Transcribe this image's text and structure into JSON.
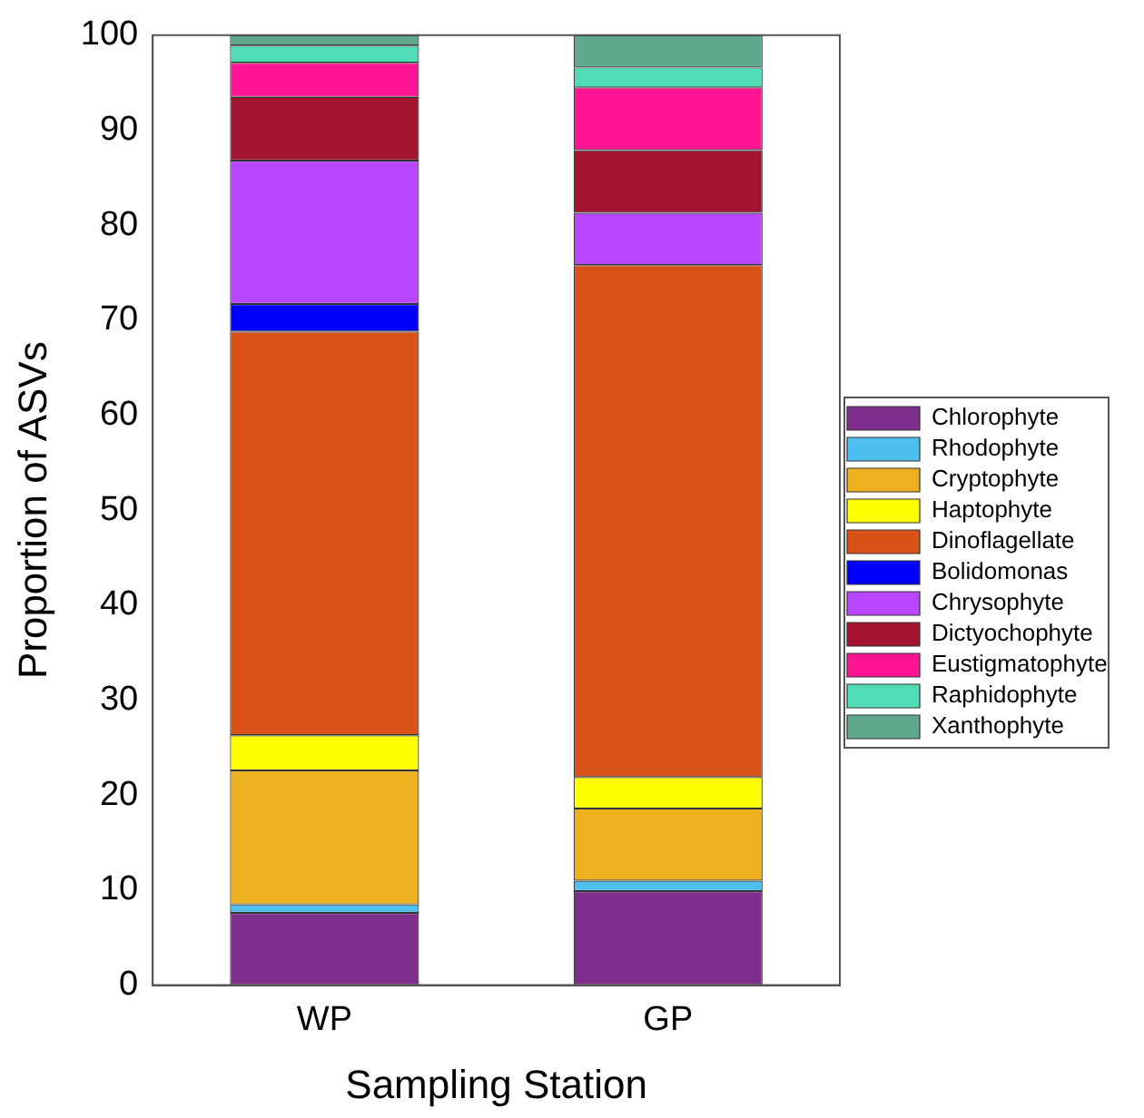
{
  "chart_data": {
    "type": "bar",
    "stacked": true,
    "xlabel": "Sampling Station",
    "ylabel": "Proportion of ASVs",
    "categories": [
      "WP",
      "GP"
    ],
    "ylim": [
      0,
      100
    ],
    "yticks": [
      0,
      10,
      20,
      30,
      40,
      50,
      60,
      70,
      80,
      90,
      100
    ],
    "grid": false,
    "legend": "right",
    "series": [
      {
        "name": "Chlorophyte",
        "color": "#7e2f8e",
        "values": [
          7.6,
          9.9
        ]
      },
      {
        "name": "Rhodophyte",
        "color": "#4dbeee",
        "values": [
          0.9,
          1.1
        ]
      },
      {
        "name": "Cryptophyte",
        "color": "#edb120",
        "values": [
          14.1,
          7.6
        ]
      },
      {
        "name": "Haptophyte",
        "color": "#ffff00",
        "values": [
          3.7,
          3.3
        ]
      },
      {
        "name": "Dinoflagellate",
        "color": "#d95319",
        "values": [
          42.5,
          53.9
        ]
      },
      {
        "name": "Bolidomonas",
        "color": "#0000ff",
        "values": [
          2.9,
          0
        ]
      },
      {
        "name": "Chrysophyte",
        "color": "#b946ff",
        "values": [
          15.1,
          5.5
        ]
      },
      {
        "name": "Dictyochophyte",
        "color": "#a2142f",
        "values": [
          6.7,
          6.6
        ]
      },
      {
        "name": "Eustigmatophyte",
        "color": "#ff1493",
        "values": [
          3.6,
          6.6
        ]
      },
      {
        "name": "Raphidophyte",
        "color": "#50dcb4",
        "values": [
          1.8,
          2.1
        ]
      },
      {
        "name": "Xanthophyte",
        "color": "#5fa88c",
        "values": [
          1.1,
          3.4
        ]
      }
    ]
  }
}
